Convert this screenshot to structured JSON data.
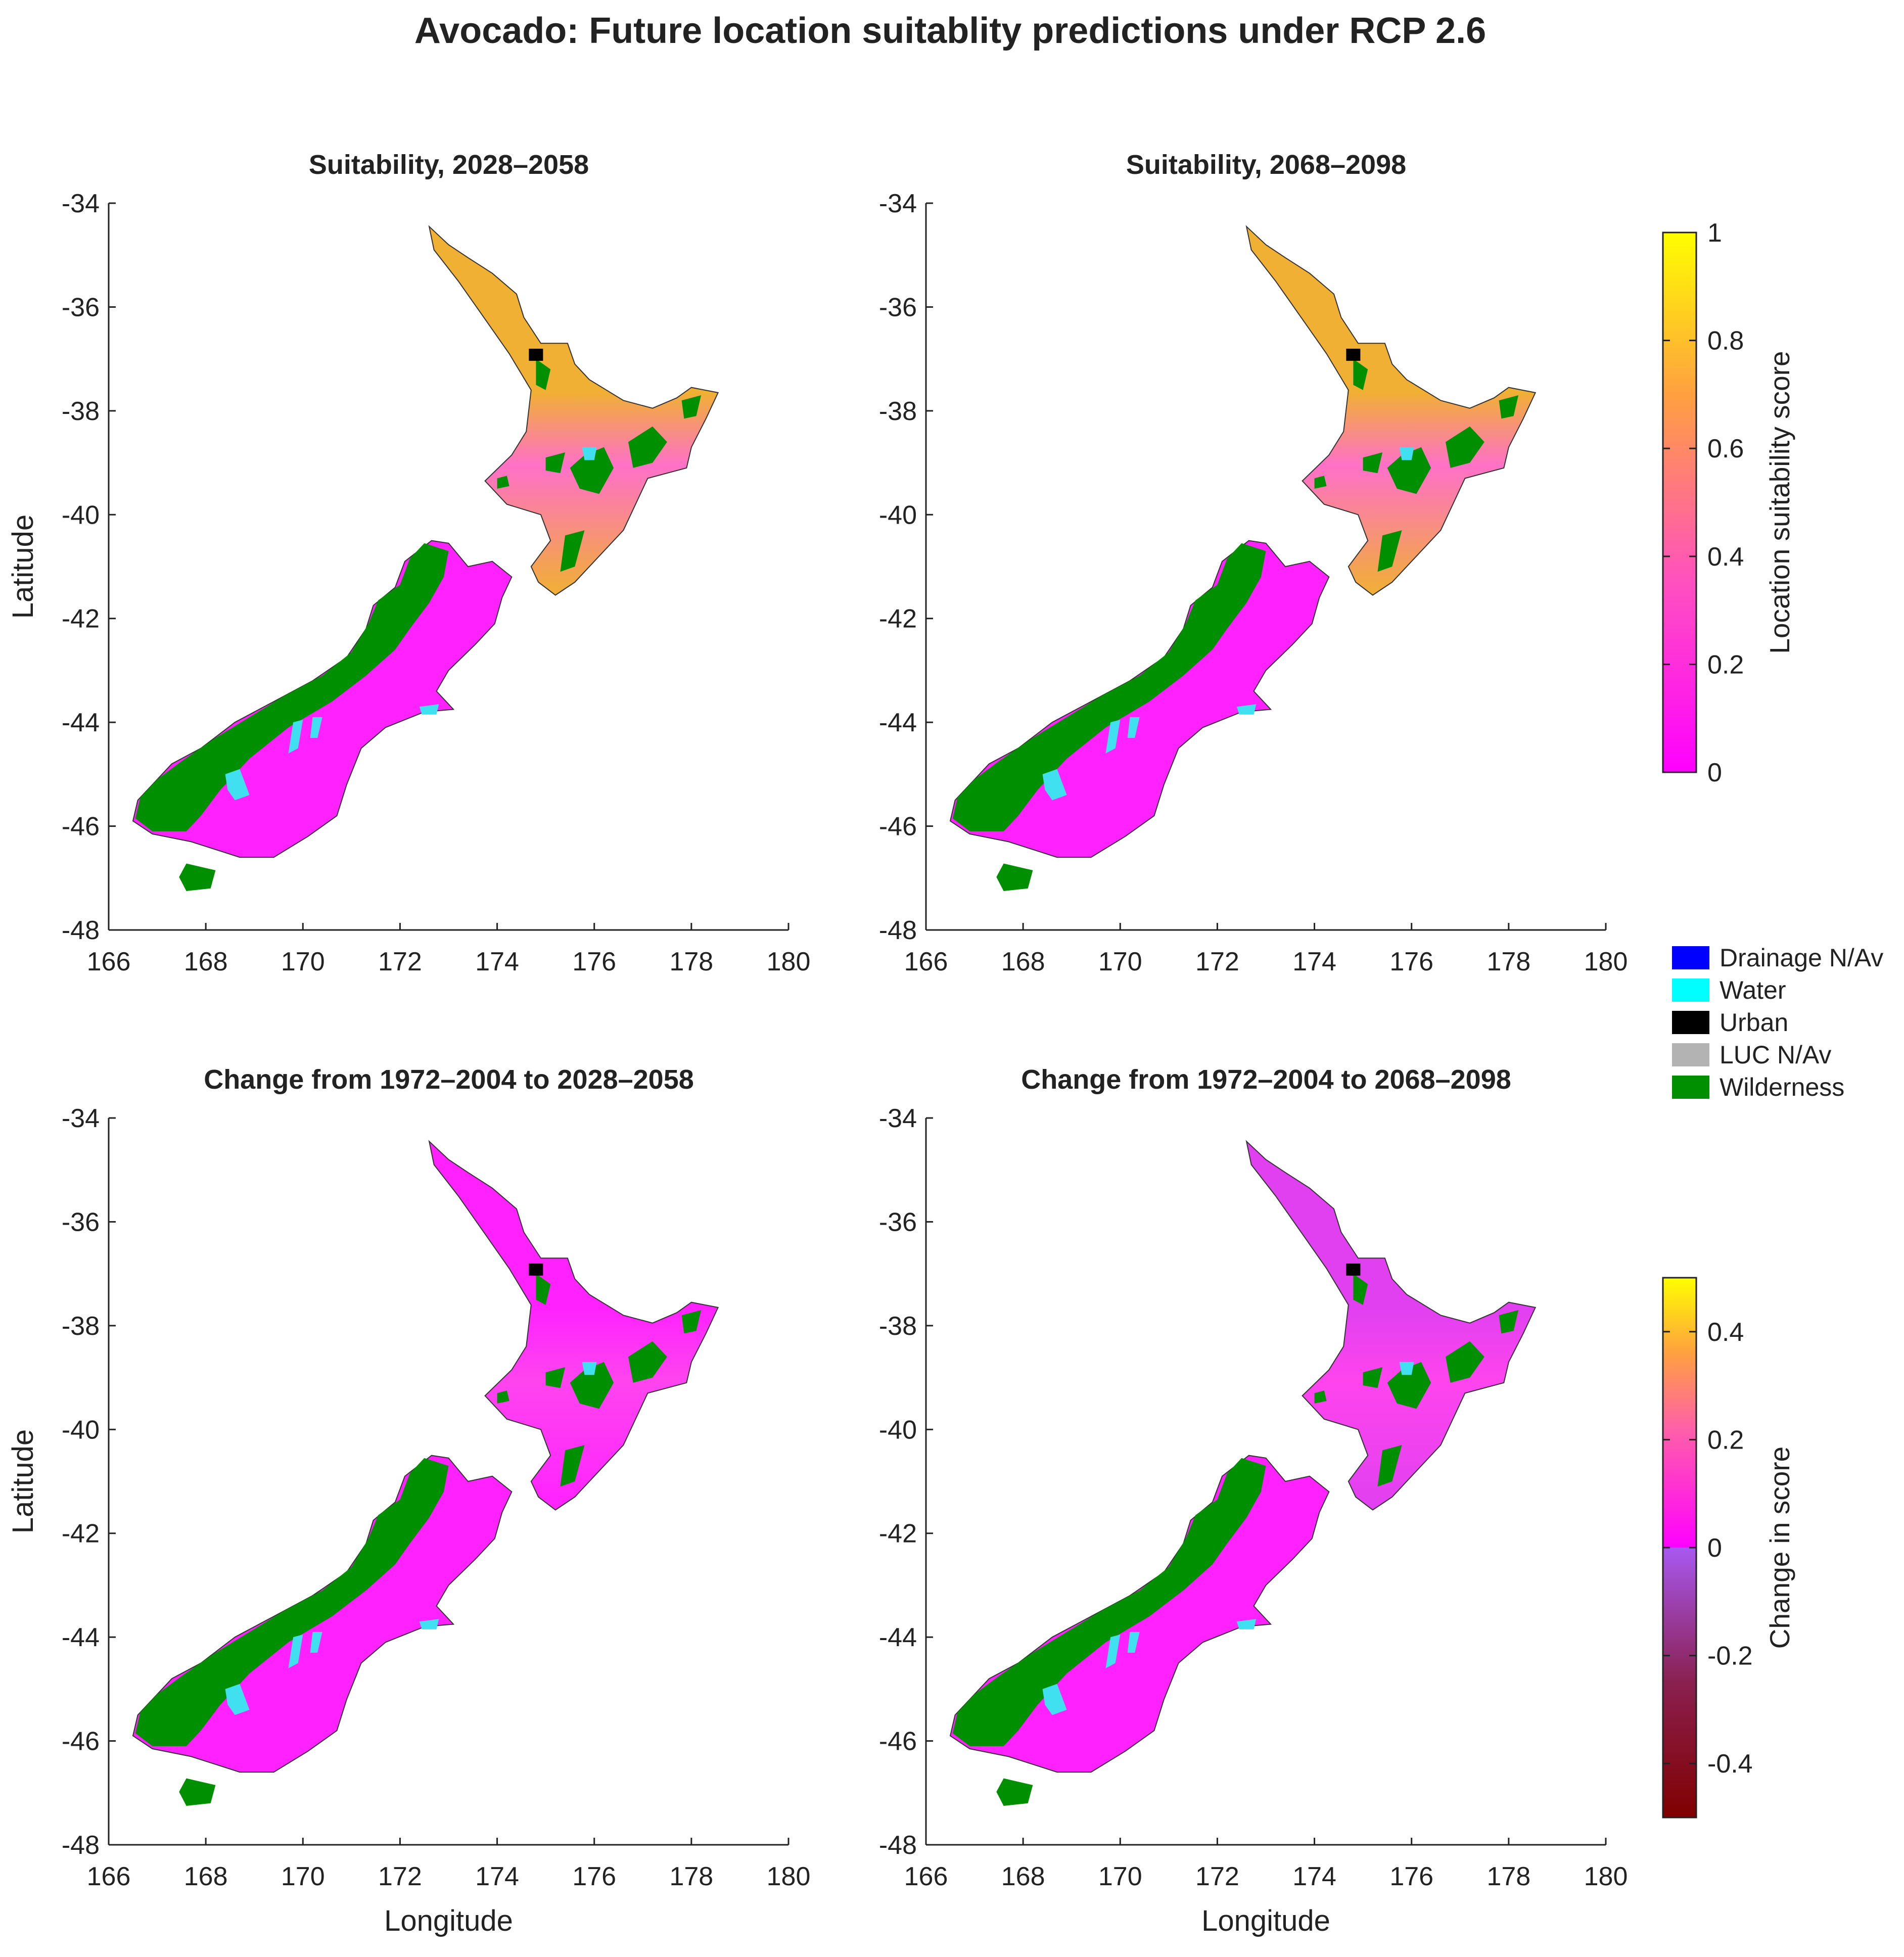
{
  "title": "Avocado: Future location suitablity predictions under RCP 2.6",
  "panels": [
    {
      "title": "Suitability, 2028–2058",
      "variant": "suit1",
      "ylabel": "Latitude",
      "xlabel": ""
    },
    {
      "title": "Suitability, 2068–2098",
      "variant": "suit2",
      "ylabel": "",
      "xlabel": ""
    },
    {
      "title": "Change from 1972–2004 to 2028–2058",
      "variant": "chg1",
      "ylabel": "Latitude",
      "xlabel": "Longitude"
    },
    {
      "title": "Change from 1972–2004 to 2068–2098",
      "variant": "chg2",
      "ylabel": "",
      "xlabel": "Longitude"
    }
  ],
  "axes": {
    "x_ticks": [
      "166",
      "168",
      "170",
      "172",
      "174",
      "176",
      "178",
      "180"
    ],
    "y_ticks": [
      "-34",
      "-36",
      "-38",
      "-40",
      "-42",
      "-44",
      "-46",
      "-48"
    ],
    "xlim": [
      166,
      180
    ],
    "ylim": [
      -48,
      -34
    ]
  },
  "colorbar_suitability": {
    "label": "Location suitability score",
    "ticks": [
      "1",
      "0.8",
      "0.6",
      "0.4",
      "0.2",
      "0"
    ],
    "range": [
      0,
      1
    ],
    "colors": [
      "#ff00ff",
      "#ff60b0",
      "#ffa040",
      "#ffff00"
    ]
  },
  "colorbar_change": {
    "label": "Change in score",
    "ticks": [
      "0.4",
      "0.2",
      "0",
      "-0.2",
      "-0.4"
    ],
    "range": [
      -0.5,
      0.5
    ],
    "colors": [
      "#800000",
      "#a040c0",
      "#ff00ff",
      "#ffa040",
      "#ffff00"
    ]
  },
  "legend": [
    {
      "label": "Drainage N/Av",
      "color": "#0000ff"
    },
    {
      "label": "Water",
      "color": "#00ffff"
    },
    {
      "label": "Urban",
      "color": "#000000"
    },
    {
      "label": "LUC N/Av",
      "color": "#b3b3b3"
    },
    {
      "label": "Wilderness",
      "color": "#008f00"
    }
  ],
  "map_colors": {
    "suit1": {
      "north": "#f0b033",
      "north_mid": "#ff70c8",
      "south": "#ff22ff"
    },
    "suit2": {
      "north": "#f0b033",
      "north_mid": "#ff70c8",
      "south": "#ff22ff"
    },
    "chg1": {
      "north": "#ff22ff",
      "north_mid": "#ff44ee",
      "south": "#ff22ff"
    },
    "chg2": {
      "north": "#e040f0",
      "north_mid": "#ff44ee",
      "south": "#ff22ff"
    },
    "wilderness": "#008f00",
    "water": "#40e0f0"
  }
}
